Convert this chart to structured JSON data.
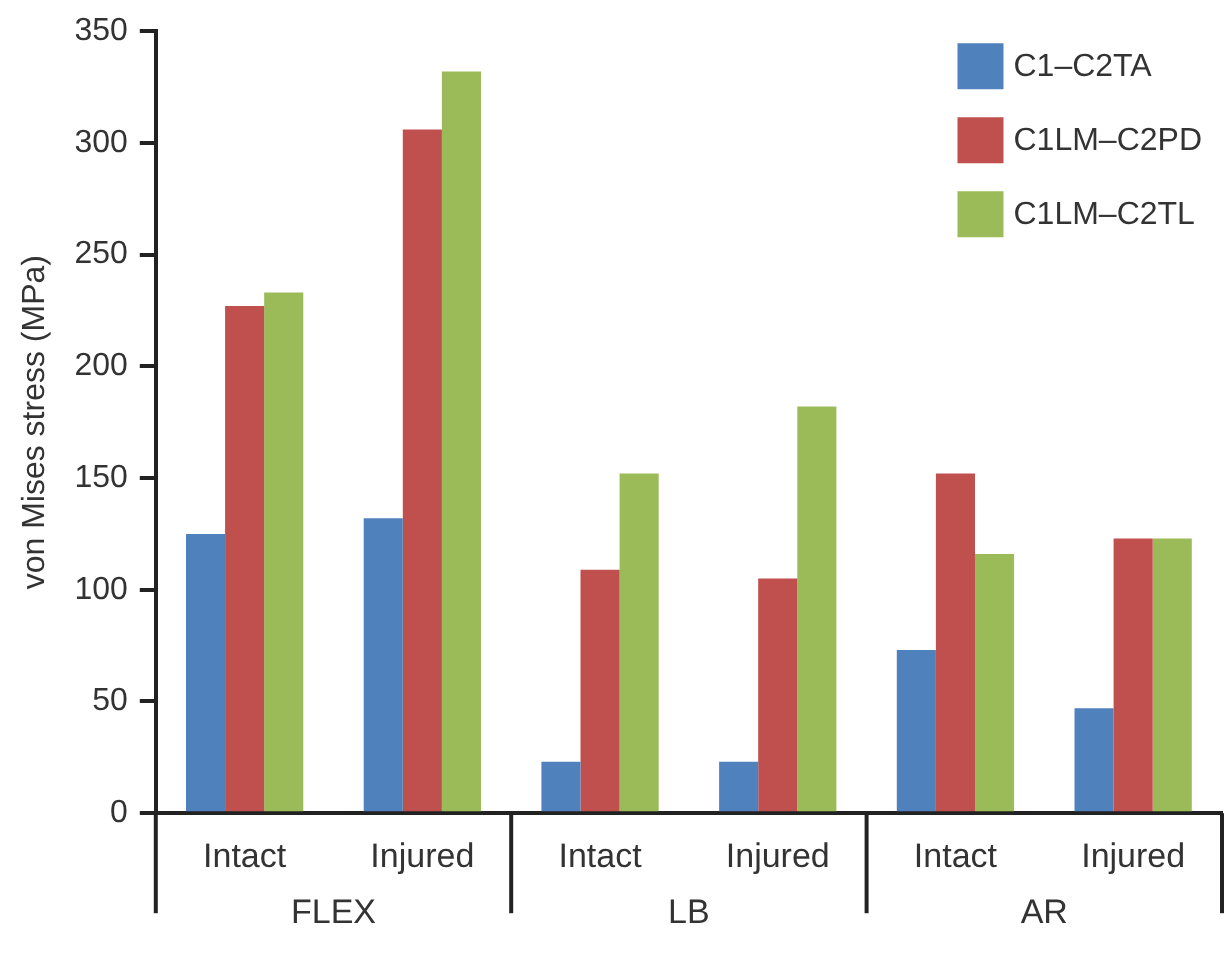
{
  "chart_data": {
    "type": "bar",
    "ylabel": "von Mises stress (MPa)",
    "categories": [
      "Intact",
      "Injured",
      "Intact",
      "Injured",
      "Intact",
      "Injured"
    ],
    "series": [
      {
        "name": "C1–C2TA",
        "color": "#4f81bd",
        "values": [
          125,
          132,
          23,
          23,
          73,
          47
        ]
      },
      {
        "name": "C1LM–C2PD",
        "color": "#c0504d",
        "values": [
          227,
          306,
          109,
          105,
          152,
          123
        ]
      },
      {
        "name": "C1LM–C2TL",
        "color": "#9bbb59",
        "values": [
          233,
          332,
          152,
          182,
          116,
          123
        ]
      }
    ],
    "annotations": [
      "FLEX",
      "LB",
      "AR"
    ],
    "ylim": [
      0,
      350
    ],
    "yticks": [
      0,
      50,
      100,
      150,
      200,
      250,
      300,
      350
    ],
    "grid": false,
    "legend": "top right"
  }
}
